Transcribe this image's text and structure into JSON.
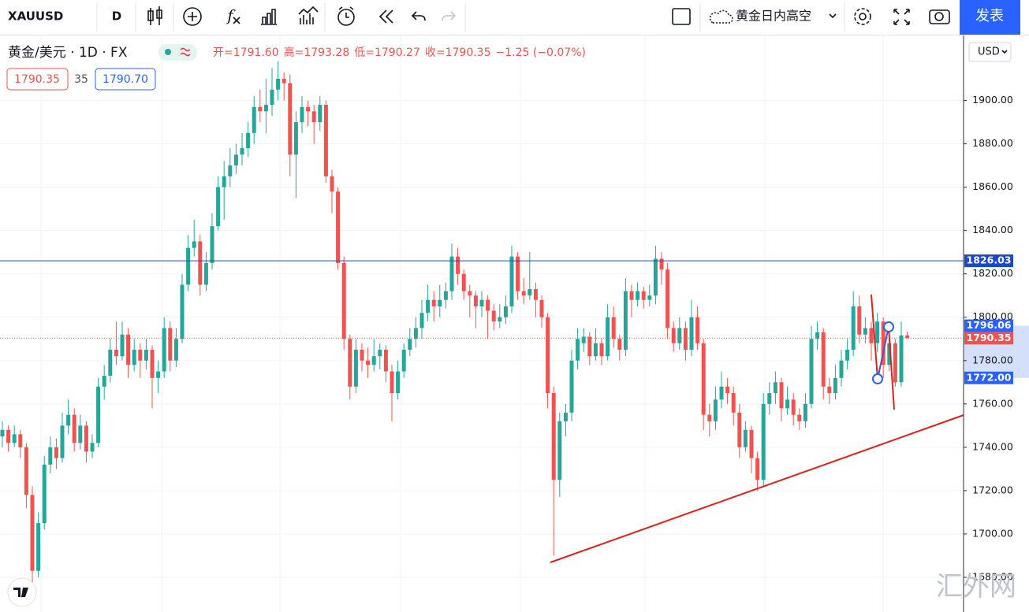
{
  "toolbar": {
    "symbol": "XAUUSD",
    "interval": "D",
    "layout_name": "黄金日内高空",
    "publish": "发表"
  },
  "legend": {
    "symbol": "黄金/美元 · 1D · FX",
    "ohlc": [
      "开=1791.60",
      "高=1793.28",
      "低=1790.27",
      "收=1790.35",
      "−1.25 (−0.07%)"
    ]
  },
  "quote": {
    "bid": "1790.35",
    "spread": "35",
    "ask": "1790.70"
  },
  "currency": "USD",
  "watermark": "汇外网",
  "chart_data": {
    "type": "candlestick",
    "up_color": "#26a69a",
    "down_color": "#ef5350",
    "ylim": [
      1664,
      1930
    ],
    "yticks": [
      {
        "value": 1680,
        "label": "1680.00"
      },
      {
        "value": 1700,
        "label": "1700.00"
      },
      {
        "value": 1720,
        "label": "1720.00"
      },
      {
        "value": 1740,
        "label": "1740.00"
      },
      {
        "value": 1760,
        "label": "1760.00"
      },
      {
        "value": 1780,
        "label": "1780.00"
      },
      {
        "value": 1800,
        "label": "1800.00"
      },
      {
        "value": 1820,
        "label": "1820.00"
      },
      {
        "value": 1840,
        "label": "1840.00"
      },
      {
        "value": 1860,
        "label": "1860.00"
      },
      {
        "value": 1880,
        "label": "1880.00"
      },
      {
        "value": 1900,
        "label": "1900.00"
      }
    ],
    "grid": true,
    "price_lines": [
      {
        "value": 1826.03,
        "label": "1826.03",
        "color": "#1848cc",
        "style": "solid"
      },
      {
        "value": 1790.35,
        "label": "1790.35",
        "color": "#ef5350",
        "style": "dotted"
      }
    ],
    "range_tags": [
      {
        "value": 1796.06,
        "label": "1796.06"
      },
      {
        "value": 1772.0,
        "label": "1772.00"
      }
    ],
    "range_color": "#2962ff",
    "candles": [
      [
        1745,
        1752,
        1740,
        1748
      ],
      [
        1748,
        1750,
        1738,
        1742
      ],
      [
        1742,
        1750,
        1740,
        1746
      ],
      [
        1746,
        1748,
        1735,
        1740
      ],
      [
        1740,
        1742,
        1712,
        1718
      ],
      [
        1718,
        1722,
        1677,
        1683
      ],
      [
        1683,
        1710,
        1680,
        1705
      ],
      [
        1705,
        1736,
        1702,
        1732
      ],
      [
        1732,
        1745,
        1728,
        1740
      ],
      [
        1740,
        1744,
        1730,
        1735
      ],
      [
        1735,
        1756,
        1733,
        1750
      ],
      [
        1750,
        1762,
        1746,
        1755
      ],
      [
        1755,
        1758,
        1738,
        1742
      ],
      [
        1742,
        1755,
        1739,
        1750
      ],
      [
        1750,
        1752,
        1733,
        1738
      ],
      [
        1738,
        1746,
        1735,
        1742
      ],
      [
        1742,
        1772,
        1740,
        1768
      ],
      [
        1768,
        1778,
        1762,
        1773
      ],
      [
        1773,
        1790,
        1770,
        1785
      ],
      [
        1785,
        1798,
        1778,
        1782
      ],
      [
        1782,
        1798,
        1780,
        1792
      ],
      [
        1792,
        1795,
        1772,
        1778
      ],
      [
        1778,
        1790,
        1775,
        1785
      ],
      [
        1785,
        1788,
        1772,
        1780
      ],
      [
        1780,
        1790,
        1776,
        1785
      ],
      [
        1785,
        1787,
        1758,
        1772
      ],
      [
        1772,
        1780,
        1765,
        1775
      ],
      [
        1775,
        1800,
        1772,
        1795
      ],
      [
        1795,
        1798,
        1775,
        1780
      ],
      [
        1780,
        1795,
        1777,
        1790
      ],
      [
        1790,
        1820,
        1788,
        1815
      ],
      [
        1815,
        1838,
        1812,
        1832
      ],
      [
        1832,
        1845,
        1828,
        1835
      ],
      [
        1835,
        1838,
        1810,
        1815
      ],
      [
        1815,
        1830,
        1812,
        1825
      ],
      [
        1825,
        1848,
        1822,
        1842
      ],
      [
        1842,
        1865,
        1840,
        1860
      ],
      [
        1860,
        1872,
        1845,
        1865
      ],
      [
        1865,
        1878,
        1860,
        1870
      ],
      [
        1870,
        1880,
        1866,
        1875
      ],
      [
        1875,
        1885,
        1870,
        1878
      ],
      [
        1878,
        1890,
        1874,
        1885
      ],
      [
        1885,
        1902,
        1880,
        1897
      ],
      [
        1897,
        1905,
        1890,
        1895
      ],
      [
        1895,
        1910,
        1885,
        1898
      ],
      [
        1898,
        1915,
        1893,
        1905
      ],
      [
        1905,
        1918,
        1900,
        1910
      ],
      [
        1910,
        1913,
        1900,
        1908
      ],
      [
        1908,
        1912,
        1865,
        1875
      ],
      [
        1875,
        1895,
        1855,
        1890
      ],
      [
        1890,
        1902,
        1885,
        1897
      ],
      [
        1897,
        1900,
        1888,
        1895
      ],
      [
        1895,
        1898,
        1880,
        1890
      ],
      [
        1890,
        1902,
        1886,
        1898
      ],
      [
        1898,
        1900,
        1862,
        1865
      ],
      [
        1865,
        1868,
        1848,
        1858
      ],
      [
        1858,
        1860,
        1822,
        1825
      ],
      [
        1825,
        1828,
        1785,
        1790
      ],
      [
        1790,
        1792,
        1762,
        1768
      ],
      [
        1768,
        1790,
        1765,
        1785
      ],
      [
        1785,
        1788,
        1775,
        1780
      ],
      [
        1780,
        1786,
        1772,
        1778
      ],
      [
        1778,
        1790,
        1775,
        1782
      ],
      [
        1782,
        1788,
        1776,
        1785
      ],
      [
        1785,
        1787,
        1770,
        1775
      ],
      [
        1775,
        1778,
        1752,
        1765
      ],
      [
        1765,
        1780,
        1762,
        1775
      ],
      [
        1775,
        1788,
        1772,
        1785
      ],
      [
        1785,
        1795,
        1782,
        1790
      ],
      [
        1790,
        1800,
        1786,
        1795
      ],
      [
        1795,
        1808,
        1790,
        1802
      ],
      [
        1802,
        1815,
        1798,
        1808
      ],
      [
        1808,
        1812,
        1798,
        1805
      ],
      [
        1805,
        1815,
        1800,
        1808
      ],
      [
        1808,
        1816,
        1804,
        1812
      ],
      [
        1812,
        1834,
        1808,
        1828
      ],
      [
        1828,
        1832,
        1815,
        1820
      ],
      [
        1820,
        1822,
        1808,
        1812
      ],
      [
        1812,
        1815,
        1800,
        1810
      ],
      [
        1810,
        1812,
        1795,
        1805
      ],
      [
        1805,
        1812,
        1800,
        1808
      ],
      [
        1808,
        1810,
        1790,
        1803
      ],
      [
        1803,
        1806,
        1794,
        1798
      ],
      [
        1798,
        1806,
        1795,
        1800
      ],
      [
        1800,
        1810,
        1797,
        1805
      ],
      [
        1805,
        1833,
        1802,
        1828
      ],
      [
        1828,
        1830,
        1808,
        1812
      ],
      [
        1812,
        1818,
        1806,
        1810
      ],
      [
        1810,
        1830,
        1808,
        1813
      ],
      [
        1813,
        1816,
        1800,
        1808
      ],
      [
        1808,
        1810,
        1795,
        1800
      ],
      [
        1800,
        1802,
        1758,
        1765
      ],
      [
        1765,
        1768,
        1690,
        1725
      ],
      [
        1725,
        1756,
        1717,
        1752
      ],
      [
        1752,
        1760,
        1745,
        1756
      ],
      [
        1756,
        1785,
        1752,
        1780
      ],
      [
        1780,
        1795,
        1776,
        1790
      ],
      [
        1788,
        1795,
        1784,
        1791
      ],
      [
        1791,
        1793,
        1778,
        1782
      ],
      [
        1782,
        1795,
        1780,
        1788
      ],
      [
        1788,
        1790,
        1778,
        1782
      ],
      [
        1782,
        1806,
        1780,
        1800
      ],
      [
        1800,
        1805,
        1786,
        1790
      ],
      [
        1790,
        1792,
        1780,
        1785
      ],
      [
        1785,
        1818,
        1782,
        1812
      ],
      [
        1812,
        1815,
        1800,
        1808
      ],
      [
        1808,
        1816,
        1805,
        1812
      ],
      [
        1812,
        1814,
        1804,
        1808
      ],
      [
        1808,
        1815,
        1805,
        1810
      ],
      [
        1810,
        1833,
        1806,
        1827
      ],
      [
        1827,
        1830,
        1815,
        1822
      ],
      [
        1822,
        1825,
        1790,
        1795
      ],
      [
        1795,
        1798,
        1784,
        1788
      ],
      [
        1788,
        1800,
        1785,
        1795
      ],
      [
        1795,
        1798,
        1780,
        1785
      ],
      [
        1785,
        1808,
        1782,
        1800
      ],
      [
        1800,
        1805,
        1785,
        1788
      ],
      [
        1788,
        1790,
        1748,
        1755
      ],
      [
        1755,
        1760,
        1745,
        1752
      ],
      [
        1752,
        1768,
        1748,
        1762
      ],
      [
        1762,
        1775,
        1758,
        1768
      ],
      [
        1768,
        1772,
        1760,
        1765
      ],
      [
        1765,
        1768,
        1750,
        1756
      ],
      [
        1756,
        1760,
        1735,
        1740
      ],
      [
        1740,
        1752,
        1738,
        1748
      ],
      [
        1748,
        1750,
        1728,
        1735
      ],
      [
        1735,
        1738,
        1720,
        1725
      ],
      [
        1725,
        1765,
        1722,
        1760
      ],
      [
        1760,
        1770,
        1755,
        1765
      ],
      [
        1765,
        1775,
        1760,
        1770
      ],
      [
        1770,
        1772,
        1752,
        1758
      ],
      [
        1758,
        1768,
        1755,
        1762
      ],
      [
        1762,
        1765,
        1750,
        1755
      ],
      [
        1755,
        1758,
        1748,
        1752
      ],
      [
        1752,
        1765,
        1749,
        1760
      ],
      [
        1760,
        1796,
        1758,
        1790
      ],
      [
        1790,
        1798,
        1785,
        1793
      ],
      [
        1793,
        1795,
        1762,
        1768
      ],
      [
        1768,
        1772,
        1760,
        1765
      ],
      [
        1765,
        1778,
        1762,
        1772
      ],
      [
        1772,
        1785,
        1768,
        1780
      ],
      [
        1780,
        1790,
        1776,
        1785
      ],
      [
        1785,
        1812,
        1782,
        1805
      ],
      [
        1805,
        1810,
        1788,
        1792
      ],
      [
        1792,
        1800,
        1788,
        1795
      ],
      [
        1795,
        1798,
        1780,
        1788
      ],
      [
        1788,
        1802,
        1784,
        1798
      ],
      [
        1798,
        1800,
        1772,
        1778
      ],
      [
        1778,
        1796,
        1775,
        1788
      ],
      [
        1788,
        1790,
        1768,
        1770
      ],
      [
        1770,
        1798,
        1768,
        1791.6
      ],
      [
        1791.6,
        1793.28,
        1790.27,
        1790.35
      ]
    ]
  }
}
